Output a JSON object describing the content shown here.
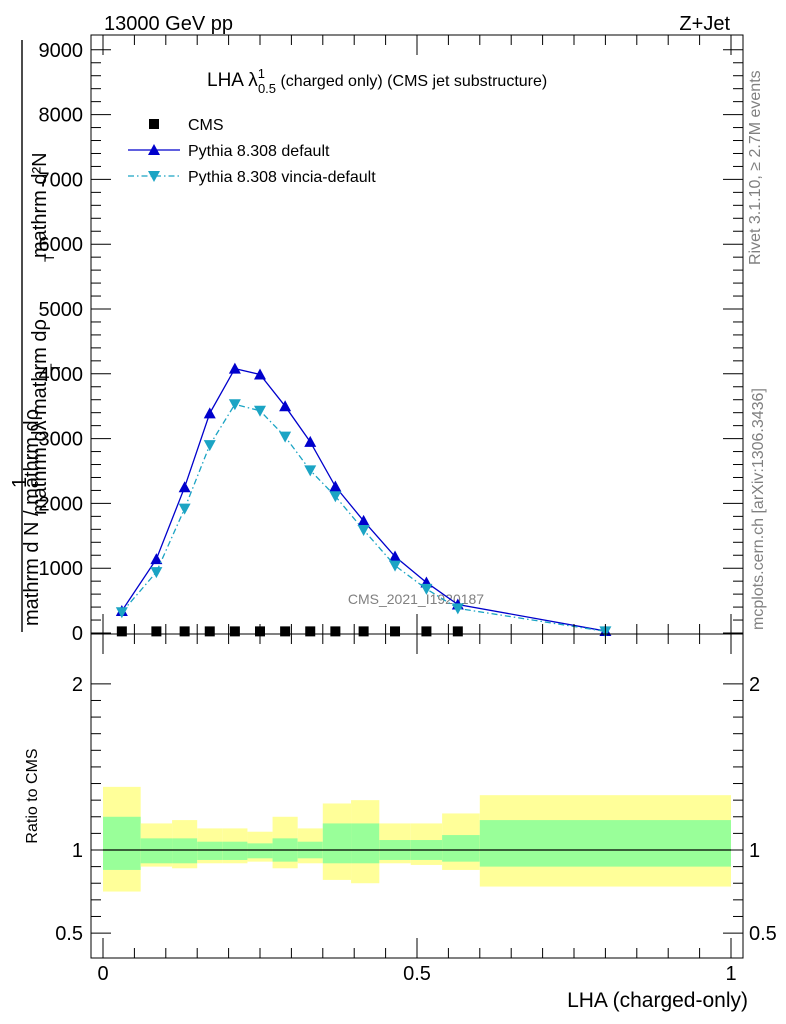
{
  "header": {
    "left": "13000 GeV pp",
    "right": "Z+Jet"
  },
  "side_text": {
    "rivet": "Rivet 3.1.10, ≥ 2.7M events",
    "mcplots": "mcplots.cern.ch [arXiv:1306.3436]"
  },
  "watermark": "CMS_2021_I1920187",
  "chart_data": {
    "type": "line",
    "title": {
      "main": "LHA λ",
      "sup": "1",
      "sub": "0.5",
      "rest": " (charged only) (CMS jet substructure)"
    },
    "ylabel": {
      "num_top": "mathrm d²N",
      "num_bottom": "mathrm dλ mathrm dρ",
      "num_sub": "T",
      "den_top": "1",
      "den_bottom": "mathrm d N / mathrm dρ",
      "den_sub": "T"
    },
    "xlabel": "LHA (charged-only)",
    "xlim": [
      0,
      1
    ],
    "ylim": [
      0,
      9300
    ],
    "ytick_values": [
      0,
      1000,
      2000,
      3000,
      4000,
      5000,
      6000,
      7000,
      8000,
      9000
    ],
    "ytick_labels": [
      "0",
      "1000",
      "2000",
      "3000",
      "4000",
      "5000",
      "6000",
      "7000",
      "8000",
      "9000"
    ],
    "xtick_values": [
      0,
      0.5,
      1
    ],
    "xtick_labels": [
      "0",
      "0.5",
      "1"
    ],
    "legend": {
      "placement": "top-left",
      "entries": [
        "CMS",
        "Pythia 8.308 default",
        "Pythia 8.308 vincia-default"
      ]
    },
    "series": [
      {
        "name": "CMS",
        "color": "#000000",
        "marker": "square",
        "x": [
          0.03,
          0.085,
          0.13,
          0.17,
          0.21,
          0.25,
          0.29,
          0.33,
          0.37,
          0.415,
          0.465,
          0.515,
          0.565
        ],
        "y": [
          25,
          25,
          25,
          25,
          25,
          25,
          25,
          25,
          25,
          25,
          25,
          25,
          25
        ]
      },
      {
        "name": "Pythia 8.308 default",
        "color": "#0000cc",
        "marker": "triangle-up",
        "x": [
          0.03,
          0.085,
          0.13,
          0.17,
          0.21,
          0.25,
          0.29,
          0.33,
          0.37,
          0.415,
          0.465,
          0.515,
          0.565,
          0.8
        ],
        "y": [
          340,
          1140,
          2250,
          3390,
          4080,
          3990,
          3500,
          2950,
          2260,
          1730,
          1180,
          780,
          440,
          30
        ]
      },
      {
        "name": "Pythia 8.308 vincia-default",
        "color": "#1ba4c4",
        "marker": "triangle-down",
        "x": [
          0.03,
          0.085,
          0.13,
          0.17,
          0.21,
          0.25,
          0.29,
          0.33,
          0.37,
          0.415,
          0.465,
          0.515,
          0.565,
          0.8
        ],
        "y": [
          320,
          940,
          1920,
          2900,
          3530,
          3430,
          3030,
          2510,
          2110,
          1590,
          1040,
          680,
          380,
          25
        ]
      }
    ],
    "ratio": {
      "ylabel": "Ratio to CMS",
      "ylim": [
        0.35,
        2.3
      ],
      "ytick_labels": [
        "0.5",
        "1",
        "2"
      ],
      "ytick_values": [
        0.5,
        1,
        2
      ],
      "band_colors": {
        "inner": "#99ff99",
        "outer": "#ffff99"
      },
      "bins": [
        {
          "x0": 0.0,
          "x1": 0.06,
          "inner": [
            0.88,
            1.2
          ],
          "outer": [
            0.75,
            1.38
          ]
        },
        {
          "x0": 0.06,
          "x1": 0.11,
          "inner": [
            0.92,
            1.07
          ],
          "outer": [
            0.9,
            1.16
          ]
        },
        {
          "x0": 0.11,
          "x1": 0.15,
          "inner": [
            0.92,
            1.07
          ],
          "outer": [
            0.89,
            1.18
          ]
        },
        {
          "x0": 0.15,
          "x1": 0.19,
          "inner": [
            0.94,
            1.05
          ],
          "outer": [
            0.92,
            1.13
          ]
        },
        {
          "x0": 0.19,
          "x1": 0.23,
          "inner": [
            0.94,
            1.05
          ],
          "outer": [
            0.92,
            1.13
          ]
        },
        {
          "x0": 0.23,
          "x1": 0.27,
          "inner": [
            0.95,
            1.04
          ],
          "outer": [
            0.93,
            1.11
          ]
        },
        {
          "x0": 0.27,
          "x1": 0.31,
          "inner": [
            0.93,
            1.07
          ],
          "outer": [
            0.89,
            1.2
          ]
        },
        {
          "x0": 0.31,
          "x1": 0.35,
          "inner": [
            0.95,
            1.05
          ],
          "outer": [
            0.92,
            1.13
          ]
        },
        {
          "x0": 0.35,
          "x1": 0.395,
          "inner": [
            0.92,
            1.16
          ],
          "outer": [
            0.82,
            1.28
          ]
        },
        {
          "x0": 0.395,
          "x1": 0.44,
          "inner": [
            0.92,
            1.16
          ],
          "outer": [
            0.8,
            1.3
          ]
        },
        {
          "x0": 0.44,
          "x1": 0.49,
          "inner": [
            0.94,
            1.06
          ],
          "outer": [
            0.92,
            1.16
          ]
        },
        {
          "x0": 0.49,
          "x1": 0.54,
          "inner": [
            0.94,
            1.06
          ],
          "outer": [
            0.91,
            1.16
          ]
        },
        {
          "x0": 0.54,
          "x1": 0.6,
          "inner": [
            0.93,
            1.09
          ],
          "outer": [
            0.88,
            1.22
          ]
        },
        {
          "x0": 0.6,
          "x1": 1.0,
          "inner": [
            0.9,
            1.18
          ],
          "outer": [
            0.78,
            1.33
          ]
        }
      ]
    }
  }
}
